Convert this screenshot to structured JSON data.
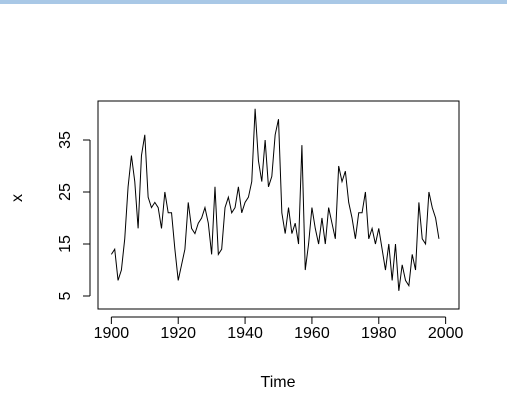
{
  "chart_data": {
    "type": "line",
    "xlabel": "Time",
    "ylabel": "x",
    "x": [
      1900,
      1901,
      1902,
      1903,
      1904,
      1905,
      1906,
      1907,
      1908,
      1909,
      1910,
      1911,
      1912,
      1913,
      1914,
      1915,
      1916,
      1917,
      1918,
      1919,
      1920,
      1921,
      1922,
      1923,
      1924,
      1925,
      1926,
      1927,
      1928,
      1929,
      1930,
      1931,
      1932,
      1933,
      1934,
      1935,
      1936,
      1937,
      1938,
      1939,
      1940,
      1941,
      1942,
      1943,
      1944,
      1945,
      1946,
      1947,
      1948,
      1949,
      1950,
      1951,
      1952,
      1953,
      1954,
      1955,
      1956,
      1957,
      1958,
      1959,
      1960,
      1961,
      1962,
      1963,
      1964,
      1965,
      1966,
      1967,
      1968,
      1969,
      1970,
      1971,
      1972,
      1973,
      1974,
      1975,
      1976,
      1977,
      1978,
      1979,
      1980,
      1981,
      1982,
      1983,
      1984,
      1985,
      1986,
      1987,
      1988,
      1989,
      1990,
      1991,
      1992,
      1993,
      1994,
      1995,
      1996,
      1997,
      1998
    ],
    "series": [
      {
        "color": "#000000",
        "values": [
          13,
          14,
          8,
          10,
          16,
          26,
          32,
          27,
          18,
          32,
          36,
          24,
          22,
          23,
          22,
          18,
          25,
          21,
          21,
          14,
          8,
          11,
          14,
          23,
          18,
          17,
          19,
          20,
          22,
          19,
          13,
          26,
          13,
          14,
          22,
          24,
          21,
          22,
          26,
          21,
          23,
          24,
          27,
          41,
          31,
          27,
          35,
          26,
          28,
          36,
          39,
          21,
          17,
          22,
          17,
          19,
          15,
          34,
          10,
          15,
          22,
          18,
          15,
          20,
          15,
          22,
          19,
          16,
          30,
          27,
          29,
          23,
          20,
          16,
          21,
          21,
          25,
          16,
          18,
          15,
          18,
          14,
          10,
          15,
          8,
          15,
          6,
          11,
          8,
          7,
          13,
          10,
          23,
          16,
          15,
          25,
          22,
          20,
          16
        ]
      }
    ],
    "xlim": [
      1896,
      2004
    ],
    "xticks": [
      1900,
      1920,
      1940,
      1960,
      1980,
      2000
    ],
    "ylim": [
      2.5,
      42.5
    ],
    "yticks": [
      5,
      15,
      25,
      35
    ]
  }
}
